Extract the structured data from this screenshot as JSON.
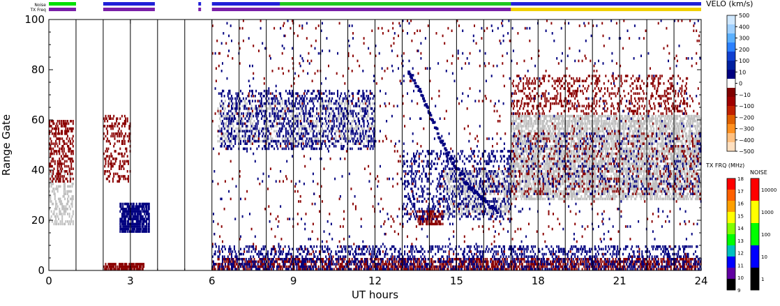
{
  "chart_data": {
    "type": "heatmap",
    "title": "",
    "xlabel": "UT hours",
    "ylabel": "Range Gate",
    "xlim": [
      0,
      24
    ],
    "ylim": [
      0,
      100
    ],
    "x_ticks": [
      "0",
      "3",
      "6",
      "9",
      "12",
      "15",
      "18",
      "21",
      "24"
    ],
    "y_ticks": [
      "0",
      "20",
      "40",
      "60",
      "80",
      "100"
    ],
    "status_bars": {
      "noise_label": "Noise",
      "txfreq_label": "TX Freq",
      "noise_segments": [
        {
          "start": 0.0,
          "end": 1.0,
          "color": "#00e000"
        },
        {
          "start": 2.0,
          "end": 3.9,
          "color": "#2020d8"
        },
        {
          "start": 5.5,
          "end": 5.6,
          "color": "#2020d8"
        },
        {
          "start": 6.0,
          "end": 17.0,
          "color": "#2020d8"
        },
        {
          "start": 8.5,
          "end": 17.0,
          "color": "#1fc81f"
        },
        {
          "start": 17.0,
          "end": 24.0,
          "color": "#2020d8"
        }
      ],
      "txfreq_segments": [
        {
          "start": 0.0,
          "end": 1.0,
          "color": "#7a1fa8"
        },
        {
          "start": 2.0,
          "end": 3.9,
          "color": "#7a1fa8"
        },
        {
          "start": 5.5,
          "end": 5.6,
          "color": "#7a1fa8"
        },
        {
          "start": 6.0,
          "end": 17.0,
          "color": "#7a1fa8"
        },
        {
          "start": 17.0,
          "end": 24.0,
          "color": "#f0d000"
        }
      ]
    },
    "scan_boundaries": [
      1.0,
      2.0,
      3.0,
      4.0,
      5.0,
      6.0,
      7.0,
      8.0,
      9.0,
      10.0,
      11.0,
      12.0,
      13.0,
      14.0,
      15.0,
      16.0,
      17.0,
      18.0,
      19.0,
      20.0,
      21.0,
      22.0,
      23.0
    ],
    "regions": [
      {
        "label": "ground-scatter",
        "color": "#c0c0c0",
        "x": [
          0.0,
          0.9
        ],
        "y": [
          18,
          40
        ],
        "density": 0.35
      },
      {
        "label": "ground-scatter",
        "color": "#c0c0c0",
        "x": [
          6.2,
          12.0
        ],
        "y": [
          50,
          68
        ],
        "density": 0.25
      },
      {
        "label": "ground-scatter",
        "color": "#c0c0c0",
        "x": [
          17.0,
          24.0
        ],
        "y": [
          28,
          62
        ],
        "density": 0.55
      },
      {
        "label": "ground-scatter",
        "color": "#c0c0c0",
        "x": [
          14.5,
          17.0
        ],
        "y": [
          22,
          40
        ],
        "density": 0.4
      },
      {
        "label": "positive-velocity",
        "color": "#000080",
        "x": [
          2.6,
          3.7
        ],
        "y": [
          15,
          27
        ],
        "density": 0.8
      },
      {
        "label": "negative-velocity",
        "color": "#8b0000",
        "x": [
          2.0,
          3.5
        ],
        "y": [
          0,
          3
        ],
        "density": 0.8
      },
      {
        "label": "negative-velocity",
        "color": "#8b0000",
        "x": [
          6.0,
          24.0
        ],
        "y": [
          0,
          5
        ],
        "density": 0.5
      },
      {
        "label": "positive-velocity",
        "color": "#000080",
        "x": [
          6.0,
          24.0
        ],
        "y": [
          0,
          10
        ],
        "density": 0.25
      },
      {
        "label": "negative-velocity",
        "color": "#8b0000",
        "x": [
          0.0,
          0.9
        ],
        "y": [
          35,
          60
        ],
        "density": 0.35
      },
      {
        "label": "negative-velocity",
        "color": "#8b0000",
        "x": [
          2.0,
          3.0
        ],
        "y": [
          35,
          62
        ],
        "density": 0.25
      },
      {
        "label": "positive-velocity",
        "color": "#000080",
        "x": [
          6.3,
          12.0
        ],
        "y": [
          48,
          72
        ],
        "density": 0.22
      },
      {
        "label": "negative-velocity",
        "color": "#8b0000",
        "x": [
          13.5,
          14.5
        ],
        "y": [
          18,
          24
        ],
        "density": 0.5
      },
      {
        "label": "negative-velocity",
        "color": "#8b0000",
        "x": [
          17.0,
          23.5
        ],
        "y": [
          62,
          78
        ],
        "density": 0.2
      },
      {
        "label": "positive-velocity",
        "color": "#000080",
        "x": [
          13.0,
          17.0
        ],
        "y": [
          20,
          48
        ],
        "density": 0.2
      },
      {
        "label": "negative-velocity",
        "color": "#8b0000",
        "x": [
          17.0,
          24.0
        ],
        "y": [
          30,
          55
        ],
        "density": 0.08
      },
      {
        "label": "positive-velocity",
        "color": "#000080",
        "x": [
          17.0,
          24.0
        ],
        "y": [
          30,
          55
        ],
        "density": 0.06
      },
      {
        "label": "negative-velocity",
        "color": "#8b0000",
        "x": [
          6.0,
          24.0
        ],
        "y": [
          5,
          100
        ],
        "density": 0.015
      },
      {
        "label": "positive-velocity",
        "color": "#000080",
        "x": [
          6.0,
          24.0
        ],
        "y": [
          5,
          100
        ],
        "density": 0.012
      }
    ],
    "traces": [
      {
        "label": "descending-echo",
        "color": "#000080",
        "points": [
          [
            13.2,
            78
          ],
          [
            13.6,
            70
          ],
          [
            14.0,
            60
          ],
          [
            14.4,
            50
          ],
          [
            14.8,
            42
          ],
          [
            15.2,
            35
          ],
          [
            15.6,
            30
          ],
          [
            16.0,
            26
          ],
          [
            16.5,
            22
          ]
        ]
      }
    ],
    "colorbars": {
      "velocity": {
        "title": "VELO (km/s)",
        "ticks": [
          "500",
          "400",
          "300",
          "200",
          "100",
          "10",
          "0",
          "−10",
          "−100",
          "−200",
          "−300",
          "−400",
          "−500"
        ],
        "colors": [
          "#cfe8ff",
          "#9fd0ff",
          "#5ab0ff",
          "#2a80ff",
          "#1040d0",
          "#0020a0",
          "#000080",
          "#ffffff",
          "#800000",
          "#a00000",
          "#c02000",
          "#e06000",
          "#ff9020",
          "#ffc080",
          "#ffe0c0"
        ]
      },
      "tx_freq": {
        "title": "TX FRQ (MHz)",
        "ticks": [
          "18",
          "17",
          "16",
          "15",
          "14",
          "13",
          "12",
          "11",
          "10",
          "9"
        ],
        "colors": [
          "#ff0000",
          "#ff6000",
          "#ffa000",
          "#ffff00",
          "#80ff00",
          "#00ff00",
          "#00c0c0",
          "#0000ff",
          "#6000a0",
          "#000000"
        ]
      },
      "noise": {
        "title": "NOISE",
        "ticks": [
          "10000",
          "1000",
          "100",
          "10",
          "1"
        ],
        "colors": [
          "#ff0000",
          "#ffff00",
          "#00ff00",
          "#0000ff",
          "#000000"
        ]
      }
    }
  }
}
